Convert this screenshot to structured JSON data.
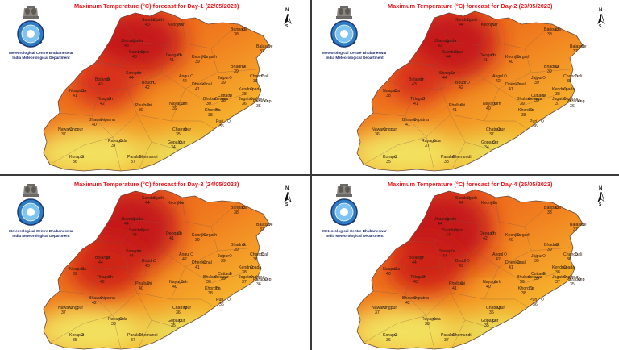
{
  "header": {
    "org_line1": "Meteorological Centre Bhubaneswar",
    "org_line2": "India Meteorological Department"
  },
  "compass": {
    "north": "N",
    "south": "S"
  },
  "palette": {
    "hot": "#c3161b",
    "warm": "#e8431c",
    "mid": "#f28a1e",
    "mild": "#f6c331",
    "cool": "#e2ef6a",
    "title": "#e8181d"
  },
  "panels": [
    {
      "title": "Maximum Temperature (°C) forecast for Day-1 (22/05/2023)",
      "stations": [
        {
          "name": "Sundargarh",
          "temp": "43"
        },
        {
          "name": "Keonjhar",
          "temp": ""
        },
        {
          "name": "Baripada",
          "temp": "38"
        },
        {
          "name": "Balasore",
          "temp": "37"
        },
        {
          "name": "Jharsuguda",
          "temp": "43"
        },
        {
          "name": "Sambalpur",
          "temp": "43"
        },
        {
          "name": "Deogarh",
          "temp": "41"
        },
        {
          "name": "Keonjhargarh",
          "temp": "39"
        },
        {
          "name": "Bhadrak",
          "temp": "39"
        },
        {
          "name": "Chandbali",
          "temp": "38"
        },
        {
          "name": "Bolangir",
          "temp": "43"
        },
        {
          "name": "Sonepur",
          "temp": "44"
        },
        {
          "name": "Angul",
          "temp": "42"
        },
        {
          "name": "Dhenkanal",
          "temp": "41"
        },
        {
          "name": "Jajpur",
          "temp": "39"
        },
        {
          "name": "Kendrapada",
          "temp": "38"
        },
        {
          "name": "Nuapada",
          "temp": "41"
        },
        {
          "name": "Titlagarh",
          "temp": "42"
        },
        {
          "name": "Boudh",
          "temp": "42"
        },
        {
          "name": "Cuttack",
          "temp": "38"
        },
        {
          "name": "Bhubaneswar",
          "temp": "39"
        },
        {
          "name": "Paradeep",
          "temp": "35"
        },
        {
          "name": "Phulbani",
          "temp": "39"
        },
        {
          "name": "Nayagarh",
          "temp": "39"
        },
        {
          "name": "Jagatsinghpur",
          "temp": "36"
        },
        {
          "name": "Bhawanipatna",
          "temp": "40"
        },
        {
          "name": "Khordha",
          "temp": "38"
        },
        {
          "name": "Puri",
          "temp": "36"
        },
        {
          "name": "Nawarangpur",
          "temp": "37"
        },
        {
          "name": "Chatrapur",
          "temp": "35"
        },
        {
          "name": "Rayagada",
          "temp": "37"
        },
        {
          "name": "Gopalpur",
          "temp": "34"
        },
        {
          "name": "Koraput",
          "temp": "36"
        },
        {
          "name": "Paralakhemundi",
          "temp": "37"
        }
      ]
    },
    {
      "title": "Maximum Temperature (°C) forecast for Day-2 (23/05/2023)",
      "stations": [
        {
          "name": "Sundargarh",
          "temp": "44"
        },
        {
          "name": "Keonjhar",
          "temp": ""
        },
        {
          "name": "Baripada",
          "temp": "38"
        },
        {
          "name": "Balasore",
          "temp": "37"
        },
        {
          "name": "Jharsuguda",
          "temp": "43"
        },
        {
          "name": "Sambalpur",
          "temp": "44"
        },
        {
          "name": "Deogarh",
          "temp": "41"
        },
        {
          "name": "Keonjhargarh",
          "temp": "40"
        },
        {
          "name": "Bhadrak",
          "temp": "39"
        },
        {
          "name": "Chandbali",
          "temp": "38"
        },
        {
          "name": "Bolangir",
          "temp": "43"
        },
        {
          "name": "Sonepur",
          "temp": "44"
        },
        {
          "name": "Angul",
          "temp": "42"
        },
        {
          "name": "Dhenkanal",
          "temp": "41"
        },
        {
          "name": "Jajpur",
          "temp": "39"
        },
        {
          "name": "Kendrapada",
          "temp": "38"
        },
        {
          "name": "Nuapada",
          "temp": "38"
        },
        {
          "name": "Titlagarh",
          "temp": "41"
        },
        {
          "name": "Boudh",
          "temp": "42"
        },
        {
          "name": "Cuttack",
          "temp": "39"
        },
        {
          "name": "Bhubaneswar",
          "temp": "39"
        },
        {
          "name": "Paradeep",
          "temp": "36"
        },
        {
          "name": "Phulbani",
          "temp": "41"
        },
        {
          "name": "Nayagarh",
          "temp": "40"
        },
        {
          "name": "Jagatsinghpur",
          "temp": "37"
        },
        {
          "name": "Bhawanipatna",
          "temp": "41"
        },
        {
          "name": "Khordha",
          "temp": "38"
        },
        {
          "name": "Puri",
          "temp": "36"
        },
        {
          "name": "Nawarangpur",
          "temp": "36"
        },
        {
          "name": "Chatrapur",
          "temp": "37"
        },
        {
          "name": "Rayagada",
          "temp": "37"
        },
        {
          "name": "Gopalpur",
          "temp": "34"
        },
        {
          "name": "Koraput",
          "temp": "35"
        },
        {
          "name": "Paralakhemundi",
          "temp": "38"
        }
      ]
    },
    {
      "title": "Maximum Temperature (°C) forecast for Day-3 (24/05/2023)",
      "stations": [
        {
          "name": "Sundargarh",
          "temp": "44"
        },
        {
          "name": "Keonjhar",
          "temp": ""
        },
        {
          "name": "Baripada",
          "temp": "38"
        },
        {
          "name": "Balasore",
          "temp": "37"
        },
        {
          "name": "Jharsuguda",
          "temp": "44"
        },
        {
          "name": "Sambalpur",
          "temp": "44"
        },
        {
          "name": "Deogarh",
          "temp": "41"
        },
        {
          "name": "Keonjhargarh",
          "temp": "39"
        },
        {
          "name": "Bhadrak",
          "temp": "39"
        },
        {
          "name": "Chandbali",
          "temp": "38"
        },
        {
          "name": "Bolangir",
          "temp": "44"
        },
        {
          "name": "Sonepur",
          "temp": "44"
        },
        {
          "name": "Angul",
          "temp": "42"
        },
        {
          "name": "Dhenkanal",
          "temp": "41"
        },
        {
          "name": "Jajpur",
          "temp": "39"
        },
        {
          "name": "Kendrapada",
          "temp": "38"
        },
        {
          "name": "Nuapada",
          "temp": "39"
        },
        {
          "name": "Titlagarh",
          "temp": "42"
        },
        {
          "name": "Boudh",
          "temp": "43"
        },
        {
          "name": "Cuttack",
          "temp": "39"
        },
        {
          "name": "Bhubaneswar",
          "temp": "39"
        },
        {
          "name": "Paradeep",
          "temp": "36"
        },
        {
          "name": "Phulbani",
          "temp": "40"
        },
        {
          "name": "Nayagarh",
          "temp": "40"
        },
        {
          "name": "Jagatsinghpur",
          "temp": "37"
        },
        {
          "name": "Bhawanipatna",
          "temp": "42"
        },
        {
          "name": "Khordha",
          "temp": "38"
        },
        {
          "name": "Puri",
          "temp": "36"
        },
        {
          "name": "Nawarangpur",
          "temp": "37"
        },
        {
          "name": "Chatrapur",
          "temp": "36"
        },
        {
          "name": "Rayagada",
          "temp": "38"
        },
        {
          "name": "Gopalpur",
          "temp": "35"
        },
        {
          "name": "Koraput",
          "temp": "35"
        },
        {
          "name": "Paralakhemundi",
          "temp": "37"
        }
      ]
    },
    {
      "title": "Maximum Temperature (°C) forecast for Day-4 (25/05/2023)",
      "stations": [
        {
          "name": "Sundargarh",
          "temp": "44"
        },
        {
          "name": "Keonjhar",
          "temp": ""
        },
        {
          "name": "Baripada",
          "temp": "38"
        },
        {
          "name": "Balasore",
          "temp": "37"
        },
        {
          "name": "Jharsuguda",
          "temp": "44"
        },
        {
          "name": "Sambalpur",
          "temp": "44"
        },
        {
          "name": "Deogarh",
          "temp": "42"
        },
        {
          "name": "Keonjhargarh",
          "temp": "40"
        },
        {
          "name": "Bhadrak",
          "temp": "39"
        },
        {
          "name": "Chandbali",
          "temp": "38"
        },
        {
          "name": "Bolangir",
          "temp": "44"
        },
        {
          "name": "Sonepur",
          "temp": "44"
        },
        {
          "name": "Angul",
          "temp": "42"
        },
        {
          "name": "Dhenkanal",
          "temp": "41"
        },
        {
          "name": "Jajpur",
          "temp": "39"
        },
        {
          "name": "Kendrapada",
          "temp": "38"
        },
        {
          "name": "Nuapada",
          "temp": "40"
        },
        {
          "name": "Titlagarh",
          "temp": "43"
        },
        {
          "name": "Boudh",
          "temp": "43"
        },
        {
          "name": "Cuttack",
          "temp": "39"
        },
        {
          "name": "Bhubaneswar",
          "temp": "39"
        },
        {
          "name": "Paradeep",
          "temp": "35"
        },
        {
          "name": "Phulbani",
          "temp": "41"
        },
        {
          "name": "Nayagarh",
          "temp": "40"
        },
        {
          "name": "Jagatsinghpur",
          "temp": "37"
        },
        {
          "name": "Bhawanipatna",
          "temp": "42"
        },
        {
          "name": "Khordha",
          "temp": "38"
        },
        {
          "name": "Puri",
          "temp": "36"
        },
        {
          "name": "Nawarangpur",
          "temp": "37"
        },
        {
          "name": "Chatrapur",
          "temp": "36"
        },
        {
          "name": "Rayagada",
          "temp": "38"
        },
        {
          "name": "Gopalpur",
          "temp": "35"
        },
        {
          "name": "Koraput",
          "temp": "36"
        },
        {
          "name": "Paralakhemundi",
          "temp": "37"
        }
      ]
    }
  ]
}
